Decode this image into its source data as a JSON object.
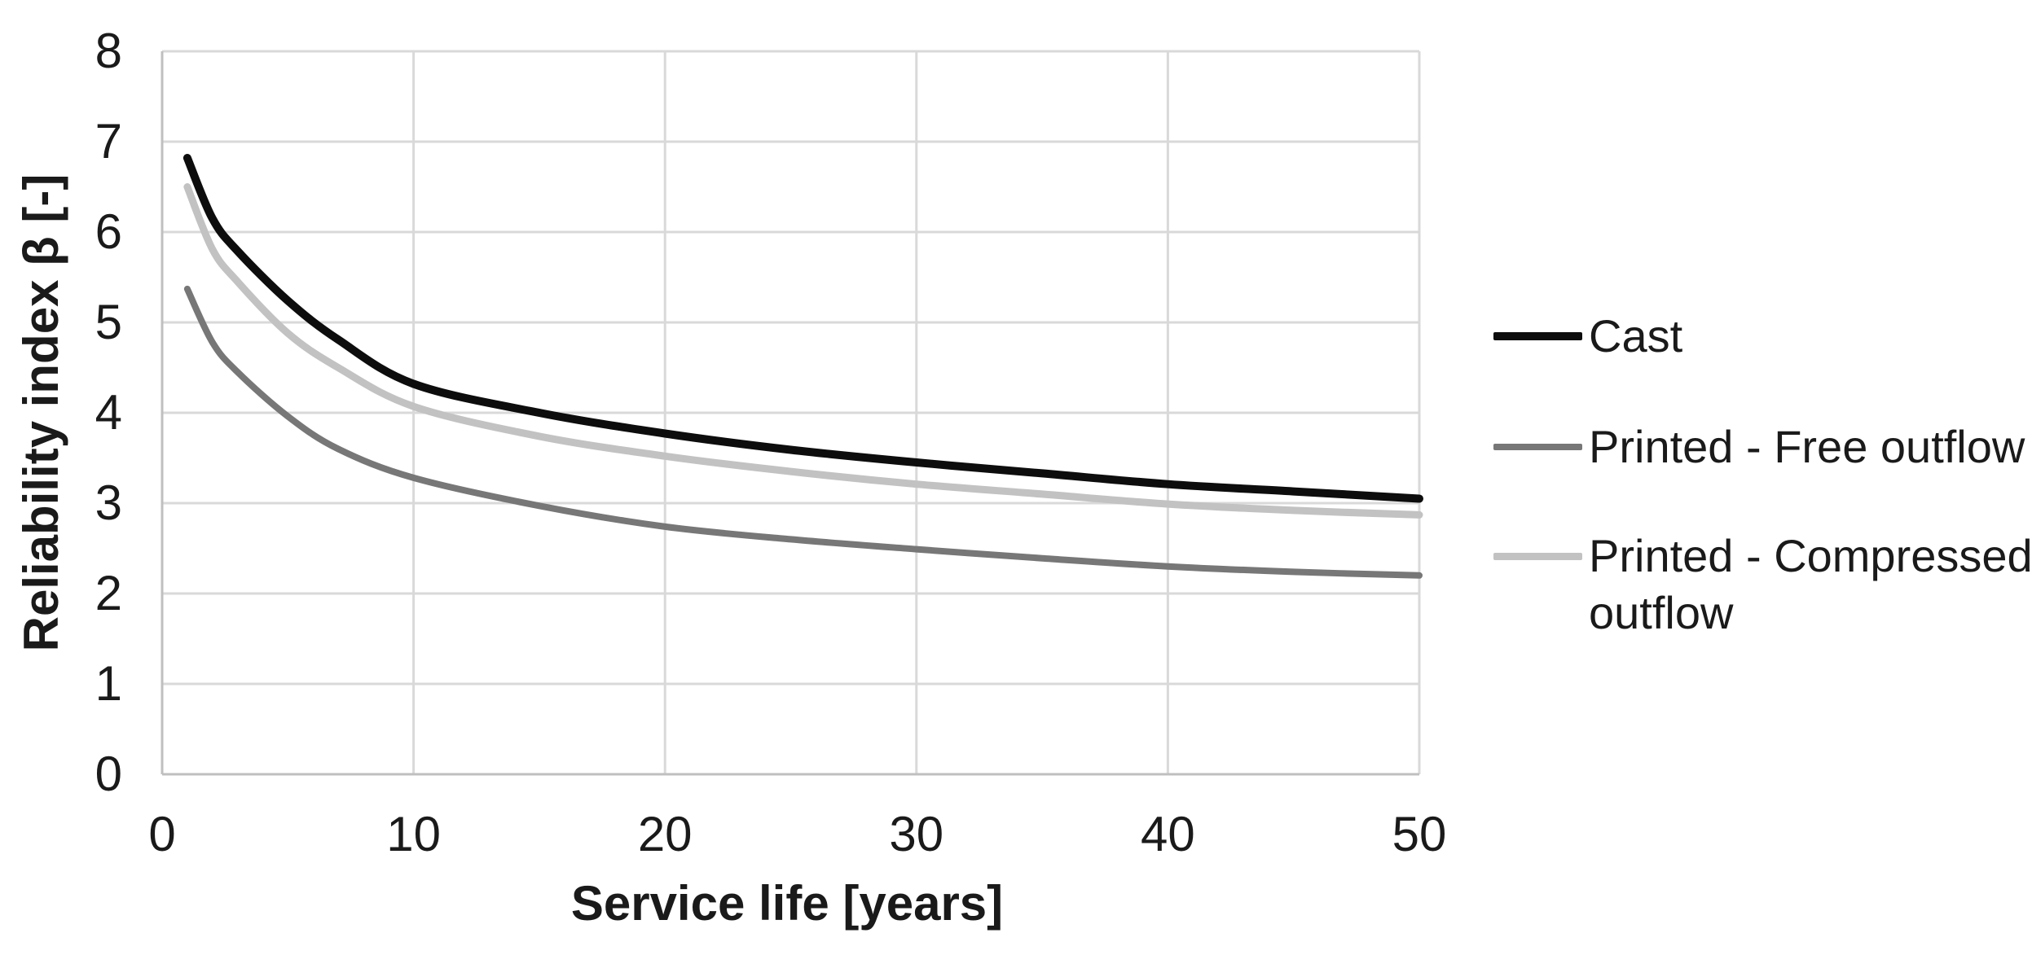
{
  "chart_data": {
    "type": "line",
    "xlabel": "Service life [years]",
    "ylabel": "Reliability index β [-]",
    "xlim": [
      0,
      50
    ],
    "ylim": [
      0,
      8
    ],
    "x_ticks": [
      0,
      10,
      20,
      30,
      40,
      50
    ],
    "y_ticks": [
      0,
      1,
      2,
      3,
      4,
      5,
      6,
      7,
      8
    ],
    "grid": true,
    "legend_position": "right",
    "x": [
      1,
      2,
      3,
      5,
      7,
      10,
      15,
      20,
      25,
      30,
      35,
      40,
      45,
      50
    ],
    "series": [
      {
        "name": "Cast",
        "color": "#0d0d0d",
        "values": [
          6.82,
          6.15,
          5.79,
          5.24,
          4.81,
          4.32,
          4.0,
          3.77,
          3.59,
          3.45,
          3.33,
          3.21,
          3.13,
          3.05
        ]
      },
      {
        "name": "Printed - Free outflow",
        "color": "#777777",
        "values": [
          5.37,
          4.78,
          4.45,
          3.96,
          3.6,
          3.28,
          2.97,
          2.74,
          2.6,
          2.49,
          2.39,
          2.3,
          2.24,
          2.2
        ]
      },
      {
        "name": "Printed - Compressed outflow",
        "color": "#c2c2c2",
        "values": [
          6.5,
          5.81,
          5.45,
          4.88,
          4.5,
          4.07,
          3.74,
          3.52,
          3.35,
          3.21,
          3.1,
          2.99,
          2.92,
          2.87
        ]
      }
    ]
  },
  "colors": {
    "background": "#ffffff",
    "gridline": "#d9d9d9",
    "axis_line": "#bfbfbf",
    "text": "#1a1a1a"
  }
}
